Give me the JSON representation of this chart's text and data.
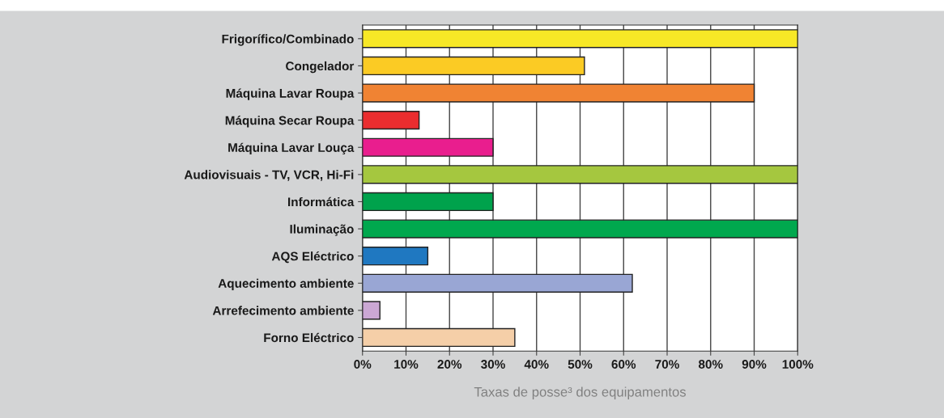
{
  "chart_data": {
    "type": "bar",
    "orientation": "horizontal",
    "categories": [
      "Frigorífico/Combinado",
      "Congelador",
      "Máquina Lavar Roupa",
      "Máquina Secar Roupa",
      "Máquina Lavar Louça",
      "Audiovisuais - TV, VCR, Hi-Fi",
      "Informática",
      "Iluminação",
      "AQS Eléctrico",
      "Aquecimento ambiente",
      "Arrefecimento ambiente",
      "Forno Eléctrico"
    ],
    "values": [
      100,
      51,
      90,
      13,
      30,
      100,
      30,
      100,
      15,
      62,
      4,
      35
    ],
    "colors": [
      "#f7e826",
      "#fbcb24",
      "#f08333",
      "#ea2d2f",
      "#e91e8e",
      "#a5c73f",
      "#00a24c",
      "#00a84e",
      "#1f78c1",
      "#99a6d4",
      "#cba7d4",
      "#f5cfa8"
    ],
    "xlim": [
      0,
      100
    ],
    "xticks": [
      {
        "value": 0,
        "label": "0%"
      },
      {
        "value": 10,
        "label": "10%"
      },
      {
        "value": 20,
        "label": "20%"
      },
      {
        "value": 30,
        "label": "30%"
      },
      {
        "value": 40,
        "label": "40%"
      },
      {
        "value": 50,
        "label": "50%"
      },
      {
        "value": 60,
        "label": "60%"
      },
      {
        "value": 70,
        "label": "70%"
      },
      {
        "value": 80,
        "label": "80%"
      },
      {
        "value": 90,
        "label": "90%"
      },
      {
        "value": 100,
        "label": "100%"
      }
    ],
    "xlabel": "Taxas de posse³ dos equipamentos",
    "grid": "x"
  }
}
